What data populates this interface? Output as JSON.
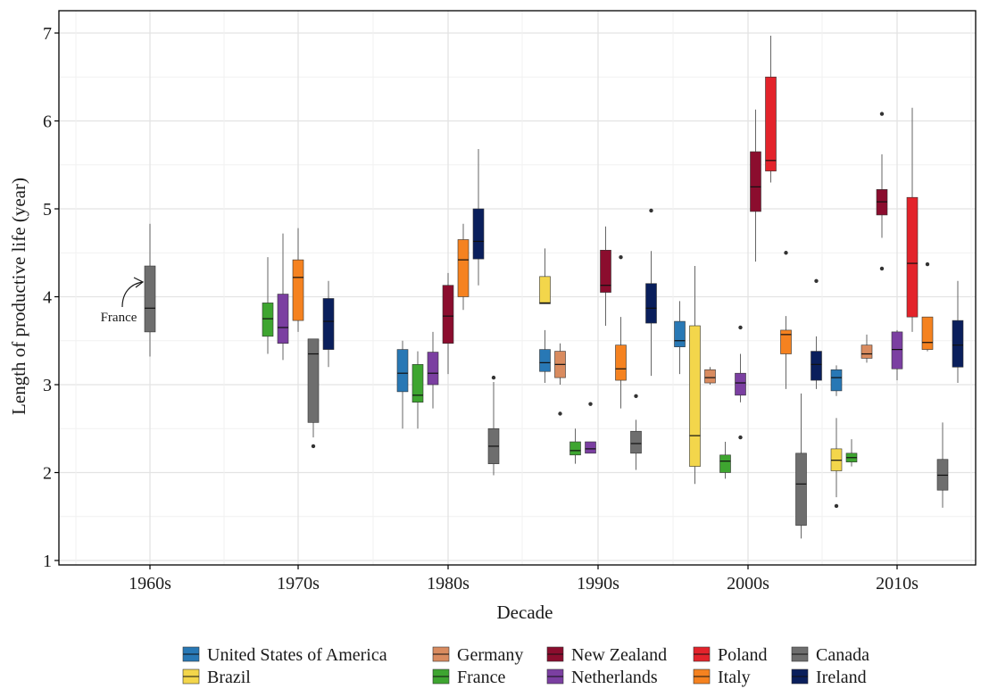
{
  "chart_data": {
    "type": "boxplot",
    "xlabel": "Decade",
    "ylabel": "Length of productive life (year)",
    "ylim": [
      1,
      7.2
    ],
    "yticks": [
      1,
      2,
      3,
      4,
      5,
      6,
      7
    ],
    "categories": [
      "1960s",
      "1970s",
      "1980s",
      "1990s",
      "2000s",
      "2010s"
    ],
    "grid": true,
    "legend_position": "bottom",
    "annotation": {
      "text": "France",
      "decade": "1960s"
    },
    "series": [
      {
        "name": "United States of America",
        "color": "#2878b5",
        "boxes": [
          {
            "decade": "1980s",
            "slot": 0,
            "lo": 2.5,
            "q1": 2.92,
            "med": 3.13,
            "q3": 3.4,
            "hi": 3.5,
            "out": []
          },
          {
            "decade": "1990s",
            "slot": 0,
            "lo": 3.02,
            "q1": 3.15,
            "med": 3.25,
            "q3": 3.4,
            "hi": 3.62,
            "out": []
          },
          {
            "decade": "2000s",
            "slot": 0,
            "lo": 3.12,
            "q1": 3.43,
            "med": 3.5,
            "q3": 3.72,
            "hi": 3.95,
            "out": []
          },
          {
            "decade": "2010s",
            "slot": 0,
            "lo": 2.87,
            "q1": 2.93,
            "med": 3.08,
            "q3": 3.17,
            "hi": 3.22,
            "out": []
          }
        ]
      },
      {
        "name": "Brazil",
        "color": "#f3d64b",
        "boxes": [
          {
            "decade": "1990s",
            "slot": 0,
            "lo": 3.92,
            "q1": 3.92,
            "med": 3.93,
            "q3": 4.23,
            "hi": 4.55,
            "out": []
          },
          {
            "decade": "2000s",
            "slot": 1,
            "lo": 1.87,
            "q1": 2.07,
            "med": 2.42,
            "q3": 3.67,
            "hi": 4.35,
            "out": []
          },
          {
            "decade": "2010s",
            "slot": 0,
            "lo": 1.72,
            "q1": 2.02,
            "med": 2.14,
            "q3": 2.27,
            "hi": 2.62,
            "out": [
              1.62
            ]
          }
        ]
      },
      {
        "name": "Germany",
        "color": "#d98b5f",
        "boxes": [
          {
            "decade": "1990s",
            "slot": 1,
            "lo": 3.0,
            "q1": 3.08,
            "med": 3.23,
            "q3": 3.38,
            "hi": 3.47,
            "out": [
              2.67
            ]
          },
          {
            "decade": "2000s",
            "slot": 2,
            "lo": 3.0,
            "q1": 3.02,
            "med": 3.08,
            "q3": 3.17,
            "hi": 3.2,
            "out": []
          },
          {
            "decade": "2010s",
            "slot": 2,
            "lo": 3.25,
            "q1": 3.3,
            "med": 3.35,
            "q3": 3.45,
            "hi": 3.57,
            "out": []
          }
        ]
      },
      {
        "name": "France",
        "color": "#3ea530",
        "boxes": [
          {
            "decade": "1970s",
            "slot": 0,
            "lo": 3.35,
            "q1": 3.55,
            "med": 3.75,
            "q3": 3.93,
            "hi": 4.45,
            "out": []
          },
          {
            "decade": "1980s",
            "slot": 1,
            "lo": 2.5,
            "q1": 2.8,
            "med": 2.88,
            "q3": 3.23,
            "hi": 3.38,
            "out": []
          },
          {
            "decade": "1990s",
            "slot": 2,
            "lo": 2.1,
            "q1": 2.2,
            "med": 2.25,
            "q3": 2.35,
            "hi": 2.5,
            "out": []
          },
          {
            "decade": "2000s",
            "slot": 3,
            "lo": 1.93,
            "q1": 2.0,
            "med": 2.13,
            "q3": 2.2,
            "hi": 2.35,
            "out": []
          },
          {
            "decade": "2010s",
            "slot": 1,
            "lo": 2.07,
            "q1": 2.12,
            "med": 2.17,
            "q3": 2.22,
            "hi": 2.38,
            "out": []
          }
        ]
      },
      {
        "name": "New Zealand",
        "color": "#8b0d2e",
        "boxes": [
          {
            "decade": "1980s",
            "slot": 3,
            "lo": 3.12,
            "q1": 3.47,
            "med": 3.78,
            "q3": 4.13,
            "hi": 4.27,
            "out": []
          },
          {
            "decade": "1990s",
            "slot": 4,
            "lo": 3.67,
            "q1": 4.05,
            "med": 4.13,
            "q3": 4.53,
            "hi": 4.8,
            "out": []
          },
          {
            "decade": "2000s",
            "slot": 5,
            "lo": 4.4,
            "q1": 4.97,
            "med": 5.25,
            "q3": 5.65,
            "hi": 6.13,
            "out": []
          },
          {
            "decade": "2010s",
            "slot": 3,
            "lo": 4.67,
            "q1": 4.93,
            "med": 5.08,
            "q3": 5.22,
            "hi": 5.62,
            "out": [
              6.08,
              4.32
            ]
          }
        ]
      },
      {
        "name": "Netherlands",
        "color": "#7b3fa1",
        "boxes": [
          {
            "decade": "1970s",
            "slot": 1,
            "lo": 3.28,
            "q1": 3.47,
            "med": 3.65,
            "q3": 4.03,
            "hi": 4.72,
            "out": []
          },
          {
            "decade": "1980s",
            "slot": 2,
            "lo": 2.73,
            "q1": 3.0,
            "med": 3.13,
            "q3": 3.37,
            "hi": 3.6,
            "out": []
          },
          {
            "decade": "1990s",
            "slot": 3,
            "lo": 2.22,
            "q1": 2.22,
            "med": 2.27,
            "q3": 2.35,
            "hi": 2.35,
            "out": [
              2.78
            ]
          },
          {
            "decade": "2000s",
            "slot": 4,
            "lo": 2.8,
            "q1": 2.88,
            "med": 3.02,
            "q3": 3.13,
            "hi": 3.35,
            "out": [
              3.65,
              2.4
            ]
          },
          {
            "decade": "2010s",
            "slot": 4,
            "lo": 3.05,
            "q1": 3.18,
            "med": 3.4,
            "q3": 3.6,
            "hi": 3.62,
            "out": []
          }
        ]
      },
      {
        "name": "Poland",
        "color": "#e3232b",
        "boxes": [
          {
            "decade": "2000s",
            "slot": 6,
            "lo": 5.3,
            "q1": 5.43,
            "med": 5.55,
            "q3": 6.5,
            "hi": 6.97,
            "out": []
          },
          {
            "decade": "2010s",
            "slot": 5,
            "lo": 3.6,
            "q1": 3.77,
            "med": 4.38,
            "q3": 5.13,
            "hi": 6.15,
            "out": []
          }
        ]
      },
      {
        "name": "Italy",
        "color": "#f58220",
        "boxes": [
          {
            "decade": "1970s",
            "slot": 2,
            "lo": 3.6,
            "q1": 3.73,
            "med": 4.22,
            "q3": 4.42,
            "hi": 4.78,
            "out": []
          },
          {
            "decade": "1980s",
            "slot": 4,
            "lo": 3.85,
            "q1": 4.0,
            "med": 4.42,
            "q3": 4.65,
            "hi": 4.83,
            "out": []
          },
          {
            "decade": "1990s",
            "slot": 5,
            "lo": 2.73,
            "q1": 3.05,
            "med": 3.18,
            "q3": 3.45,
            "hi": 3.77,
            "out": [
              4.45
            ]
          },
          {
            "decade": "2000s",
            "slot": 7,
            "lo": 2.95,
            "q1": 3.35,
            "med": 3.57,
            "q3": 3.62,
            "hi": 3.78,
            "out": [
              4.5
            ]
          },
          {
            "decade": "2010s",
            "slot": 6,
            "lo": 3.38,
            "q1": 3.4,
            "med": 3.48,
            "q3": 3.77,
            "hi": 3.77,
            "out": [
              4.37
            ]
          }
        ]
      },
      {
        "name": "Canada",
        "color": "#6e6e6e",
        "boxes": [
          {
            "decade": "1960s",
            "slot": 0,
            "lo": 3.32,
            "q1": 3.6,
            "med": 3.87,
            "q3": 4.35,
            "hi": 4.83,
            "out": []
          },
          {
            "decade": "1970s",
            "slot": 3,
            "lo": 2.4,
            "q1": 2.57,
            "med": 3.35,
            "q3": 3.52,
            "hi": 3.52,
            "out": [
              2.3
            ]
          },
          {
            "decade": "1980s",
            "slot": 6,
            "lo": 1.97,
            "q1": 2.1,
            "med": 2.3,
            "q3": 2.5,
            "hi": 3.03,
            "out": [
              3.08
            ]
          },
          {
            "decade": "1990s",
            "slot": 6,
            "lo": 2.03,
            "q1": 2.22,
            "med": 2.33,
            "q3": 2.47,
            "hi": 2.6,
            "out": [
              2.87
            ]
          },
          {
            "decade": "2000s",
            "slot": 8,
            "lo": 1.25,
            "q1": 1.4,
            "med": 1.87,
            "q3": 2.22,
            "hi": 2.9,
            "out": []
          },
          {
            "decade": "2010s",
            "slot": 7,
            "lo": 1.6,
            "q1": 1.8,
            "med": 1.97,
            "q3": 2.15,
            "hi": 2.57,
            "out": []
          }
        ]
      },
      {
        "name": "Ireland",
        "color": "#0a1f5c",
        "boxes": [
          {
            "decade": "1970s",
            "slot": 4,
            "lo": 3.2,
            "q1": 3.4,
            "med": 3.72,
            "q3": 3.98,
            "hi": 4.18,
            "out": []
          },
          {
            "decade": "1980s",
            "slot": 5,
            "lo": 4.13,
            "q1": 4.43,
            "med": 4.63,
            "q3": 5.0,
            "hi": 5.68,
            "out": []
          },
          {
            "decade": "1990s",
            "slot": 7,
            "lo": 3.1,
            "q1": 3.7,
            "med": 3.87,
            "q3": 4.15,
            "hi": 4.52,
            "out": [
              4.98
            ]
          },
          {
            "decade": "2000s",
            "slot": 9,
            "lo": 2.95,
            "q1": 3.05,
            "med": 3.23,
            "q3": 3.38,
            "hi": 3.55,
            "out": [
              4.18
            ]
          },
          {
            "decade": "2010s",
            "slot": 8,
            "lo": 3.02,
            "q1": 3.2,
            "med": 3.45,
            "q3": 3.73,
            "hi": 4.18,
            "out": []
          }
        ]
      }
    ]
  }
}
